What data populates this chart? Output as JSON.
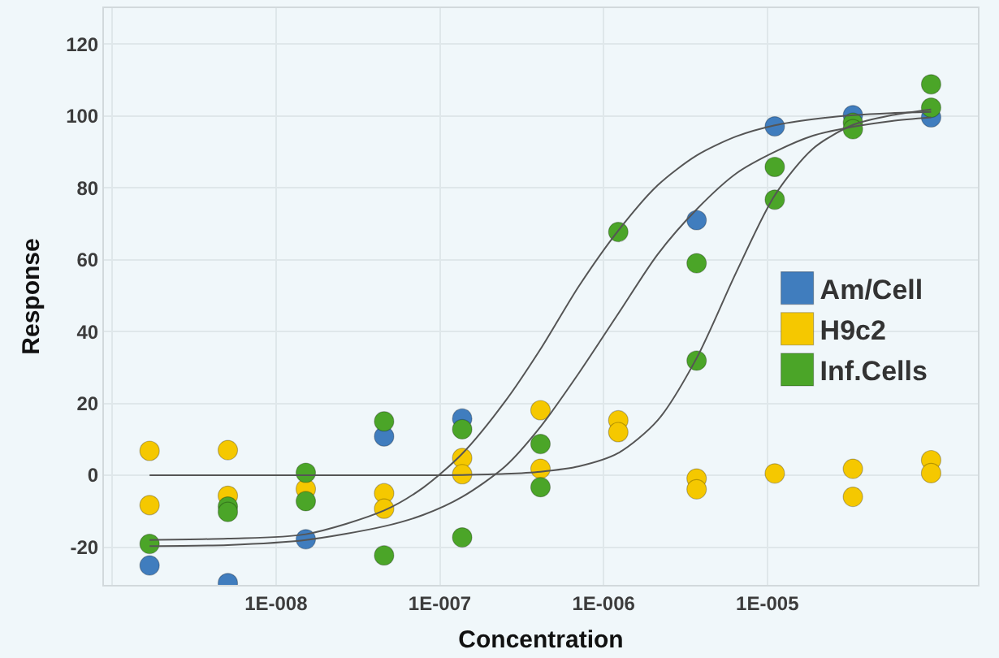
{
  "chart_data": {
    "type": "scatter",
    "xlabel": "Concentration",
    "ylabel": "Response",
    "log": "x",
    "xlim": [
      8.9e-10,
      0.000193
    ],
    "ylim": [
      -30.5,
      130
    ],
    "xticks": [
      {
        "value": 1e-09,
        "label": null
      },
      {
        "value": 1e-08,
        "label": "1E-008"
      },
      {
        "value": 1e-07,
        "label": "1E-007"
      },
      {
        "value": 1e-06,
        "label": "1E-006"
      },
      {
        "value": 1e-05,
        "label": "1E-005"
      }
    ],
    "yticks": [
      -20,
      0,
      20,
      40,
      60,
      80,
      100,
      120
    ],
    "grid": true,
    "legend": "right",
    "marker": "circle",
    "series": [
      {
        "name": "Am/Cell",
        "color": "#407dbe",
        "x": [
          1.69e-09,
          5.08e-09,
          1.52e-08,
          4.57e-08,
          1.37e-07,
          3.7e-06,
          1.11e-05,
          3.33e-05,
          0.0001
        ],
        "values": [
          -25.1,
          -30,
          -17.8,
          10.8,
          15.8,
          71,
          97.1,
          100.2,
          99.6
        ]
      },
      {
        "name": "H9c2",
        "color": "#f5c800",
        "x": [
          1.69e-09,
          1.69e-09,
          5.08e-09,
          5.08e-09,
          1.52e-08,
          4.57e-08,
          4.57e-08,
          1.37e-07,
          1.37e-07,
          4.12e-07,
          4.12e-07,
          1.23e-06,
          1.23e-06,
          3.7e-06,
          3.7e-06,
          1.11e-05,
          3.33e-05,
          3.33e-05,
          0.0001,
          0.0001
        ],
        "values": [
          6.8,
          -8.3,
          7,
          -5.7,
          -3.8,
          -5,
          -9.3,
          4.8,
          0.3,
          18.1,
          1.8,
          15.3,
          12,
          -0.9,
          -3.9,
          0.5,
          1.8,
          -6,
          4.2,
          0.6
        ]
      },
      {
        "name": "Inf.Cells",
        "color": "#4ba528",
        "x": [
          1.69e-09,
          5.08e-09,
          5.08e-09,
          1.52e-08,
          1.52e-08,
          4.57e-08,
          4.57e-08,
          1.37e-07,
          1.37e-07,
          4.12e-07,
          4.12e-07,
          1.23e-06,
          3.7e-06,
          3.7e-06,
          1.11e-05,
          1.11e-05,
          3.33e-05,
          3.33e-05,
          0.0001,
          0.0001
        ],
        "values": [
          -19.1,
          -8.7,
          -10.2,
          0.7,
          -7.2,
          15,
          -22.3,
          12.8,
          -17.3,
          8.7,
          -3.3,
          67.7,
          59,
          31.9,
          85.8,
          76.7,
          98.1,
          96.3,
          108.8,
          102.3
        ]
      },
      {
        "type": "line",
        "marker": "none",
        "color": "#555555",
        "x": [
          1.69e-09,
          5.08e-09,
          1.52e-08,
          4.57e-08,
          7.94e-08,
          1.37e-07,
          2.51e-07,
          4.12e-07,
          7.08e-07,
          1.23e-06,
          2.14e-06,
          3.7e-06,
          6.46e-06,
          1.11e-05,
          1.9e-05,
          3.33e-05,
          5.75e-05,
          0.0001
        ],
        "values": [
          -18,
          -17.6,
          -16.4,
          -9.8,
          -3.4,
          6,
          20.6,
          35.1,
          52.7,
          68.1,
          80.7,
          89,
          94.3,
          97.4,
          99.1,
          100.2,
          100.8,
          101.1
        ]
      },
      {
        "type": "line",
        "marker": "none",
        "color": "#555555",
        "x": [
          1.69e-09,
          5.08e-09,
          1.52e-08,
          4.57e-08,
          7.94e-08,
          1.37e-07,
          2.51e-07,
          4.12e-07,
          7.08e-07,
          1.23e-06,
          2.14e-06,
          3.7e-06,
          6.46e-06,
          1.11e-05,
          1.9e-05,
          3.33e-05,
          5.75e-05,
          0.0001
        ],
        "values": [
          -19.7,
          -19.4,
          -18,
          -14.2,
          -11,
          -6,
          2.5,
          13.5,
          28.5,
          45,
          61.5,
          74,
          84,
          90,
          94.5,
          97,
          98.6,
          99.6
        ]
      },
      {
        "type": "line",
        "marker": "none",
        "color": "#555555",
        "x": [
          1.69e-09,
          5.08e-09,
          1.52e-08,
          4.57e-08,
          7.94e-08,
          1.37e-07,
          2.51e-07,
          4.12e-07,
          7.08e-07,
          1.23e-06,
          2.14e-06,
          3.7e-06,
          6.46e-06,
          1.11e-05,
          1.9e-05,
          3.33e-05,
          5.75e-05,
          0.0001
        ],
        "values": [
          0,
          0,
          0,
          0,
          0,
          0.1,
          0.4,
          1,
          2.5,
          6.2,
          15.3,
          32.6,
          56.5,
          77.9,
          90.9,
          97.5,
          100.2,
          101.8
        ]
      }
    ]
  }
}
